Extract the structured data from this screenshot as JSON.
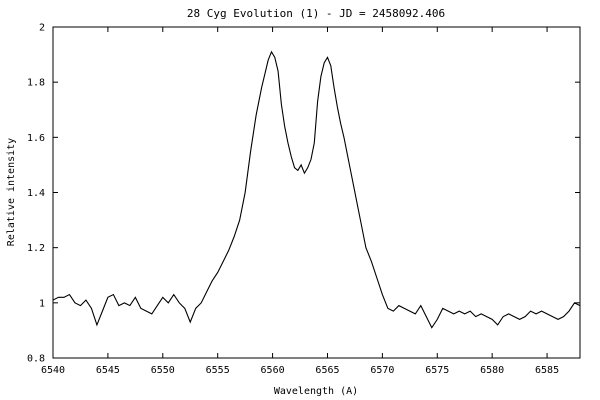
{
  "chart_data": {
    "type": "line",
    "title": "28 Cyg Evolution (1) - JD = 2458092.406",
    "xlabel": "Wavelength (A)",
    "ylabel": "Relative intensity",
    "xlim": [
      6540,
      6588
    ],
    "ylim": [
      0.8,
      2.0
    ],
    "xticks": [
      6540,
      6545,
      6550,
      6555,
      6560,
      6565,
      6570,
      6575,
      6580,
      6585
    ],
    "yticks": [
      0.8,
      1.0,
      1.2,
      1.4,
      1.6,
      1.8,
      2.0
    ],
    "ytick_labels": [
      "0.8",
      "1",
      "1.2",
      "1.4",
      "1.6",
      "1.8",
      "2"
    ],
    "grid": false,
    "series": [
      {
        "x": [
          6540.0,
          6540.5,
          6541.0,
          6541.5,
          6542.0,
          6542.5,
          6543.0,
          6543.5,
          6544.0,
          6544.5,
          6545.0,
          6545.5,
          6546.0,
          6546.5,
          6547.0,
          6547.5,
          6548.0,
          6548.5,
          6549.0,
          6549.5,
          6550.0,
          6550.5,
          6551.0,
          6551.5,
          6552.0,
          6552.5,
          6553.0,
          6553.5,
          6554.0,
          6554.5,
          6555.0,
          6555.5,
          6556.0,
          6556.5,
          6557.0,
          6557.5,
          6558.0,
          6558.5,
          6559.0,
          6559.3,
          6559.6,
          6559.9,
          6560.2,
          6560.5,
          6560.8,
          6561.1,
          6561.4,
          6561.7,
          6562.0,
          6562.3,
          6562.6,
          6562.9,
          6563.2,
          6563.5,
          6563.8,
          6564.1,
          6564.4,
          6564.7,
          6565.0,
          6565.3,
          6565.6,
          6565.9,
          6566.2,
          6566.5,
          6566.8,
          6567.1,
          6567.5,
          6568.0,
          6568.5,
          6569.0,
          6569.5,
          6570.0,
          6570.5,
          6571.0,
          6571.5,
          6572.0,
          6572.5,
          6573.0,
          6573.5,
          6574.0,
          6574.5,
          6575.0,
          6575.5,
          6576.0,
          6576.5,
          6577.0,
          6577.5,
          6578.0,
          6578.5,
          6579.0,
          6579.5,
          6580.0,
          6580.5,
          6581.0,
          6581.5,
          6582.0,
          6582.5,
          6583.0,
          6583.5,
          6584.0,
          6584.5,
          6585.0,
          6585.5,
          6586.0,
          6586.5,
          6587.0,
          6587.5,
          6588.0
        ],
        "y": [
          1.01,
          1.02,
          1.02,
          1.03,
          1.0,
          0.99,
          1.01,
          0.98,
          0.92,
          0.97,
          1.02,
          1.03,
          0.99,
          1.0,
          0.99,
          1.02,
          0.98,
          0.97,
          0.96,
          0.99,
          1.02,
          1.0,
          1.03,
          1.0,
          0.98,
          0.93,
          0.98,
          1.0,
          1.04,
          1.08,
          1.11,
          1.15,
          1.19,
          1.24,
          1.3,
          1.4,
          1.55,
          1.68,
          1.78,
          1.83,
          1.88,
          1.91,
          1.89,
          1.84,
          1.72,
          1.64,
          1.58,
          1.53,
          1.49,
          1.48,
          1.5,
          1.47,
          1.49,
          1.52,
          1.58,
          1.73,
          1.82,
          1.87,
          1.89,
          1.86,
          1.78,
          1.71,
          1.65,
          1.6,
          1.54,
          1.48,
          1.4,
          1.3,
          1.2,
          1.15,
          1.09,
          1.03,
          0.98,
          0.97,
          0.99,
          0.98,
          0.97,
          0.96,
          0.99,
          0.95,
          0.91,
          0.94,
          0.98,
          0.97,
          0.96,
          0.97,
          0.96,
          0.97,
          0.95,
          0.96,
          0.95,
          0.94,
          0.92,
          0.95,
          0.96,
          0.95,
          0.94,
          0.95,
          0.97,
          0.96,
          0.97,
          0.96,
          0.95,
          0.94,
          0.95,
          0.97,
          1.0,
          0.99
        ]
      }
    ]
  }
}
